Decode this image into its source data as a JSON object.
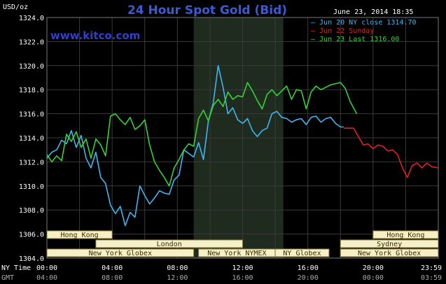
{
  "chart_data": {
    "type": "line",
    "title": "24 Hour Spot Gold (Bid)",
    "watermark": "www.kitco.com",
    "timestamp": "June 23, 2014 18:35",
    "y_unit_label": "USD/oz",
    "ylim": [
      1304.0,
      1324.0
    ],
    "y_ticks": [
      "1304.0",
      "1306.0",
      "1308.0",
      "1310.0",
      "1312.0",
      "1314.0",
      "1316.0",
      "1318.0",
      "1320.0",
      "1322.0",
      "1324.0"
    ],
    "x_row_labels": {
      "ny": "NY Time",
      "gmt": "GMT"
    },
    "x_ticks_ny": [
      "00:00",
      "04:00",
      "08:00",
      "12:00",
      "16:00",
      "20:00",
      "23:59"
    ],
    "x_ticks_gmt": [
      "04:00",
      "08:00",
      "12:00",
      "16:00",
      "20:00",
      "00:00",
      "03:59"
    ],
    "x_range_hours": [
      0,
      24
    ],
    "colors": {
      "background": "#000000",
      "grid": "#3a3a3a",
      "axis_text": "#ffffff",
      "title": "#3b5bd6",
      "watermark": "#2f3fd0",
      "market_label_bg": "#f5f0c8",
      "market_label_border": "#8a7a3a",
      "market_label_text": "#3a2a00",
      "highlight_band": "#1e2b1e"
    },
    "legend_position": "top-right",
    "highlight_band_hours": [
      9.0,
      14.5
    ],
    "series": [
      {
        "name": "Jun 20 NY close 1314.70",
        "color": "#3fb6f0",
        "x": [
          0,
          0.3,
          0.6,
          0.9,
          1.2,
          1.5,
          1.8,
          2.1,
          2.4,
          2.7,
          3.0,
          3.3,
          3.6,
          3.9,
          4.2,
          4.5,
          4.8,
          5.1,
          5.4,
          5.7,
          6.0,
          6.3,
          6.6,
          6.9,
          7.2,
          7.5,
          7.8,
          8.1,
          8.4,
          8.7,
          9.0,
          9.3,
          9.6,
          9.9,
          10.2,
          10.5,
          10.8,
          11.1,
          11.4,
          11.7,
          12.0,
          12.3,
          12.6,
          12.9,
          13.2,
          13.5,
          13.8,
          14.1,
          14.4,
          14.7,
          15.0,
          15.3,
          15.6,
          15.9,
          16.2,
          16.5,
          16.8,
          17.1,
          17.4,
          17.7,
          18.0,
          18.2
        ],
        "values": [
          1312.3,
          1312.8,
          1313.0,
          1313.8,
          1313.5,
          1314.6,
          1313.2,
          1314.2,
          1312.3,
          1311.5,
          1312.8,
          1310.7,
          1310.2,
          1308.4,
          1307.7,
          1308.3,
          1306.7,
          1307.8,
          1307.4,
          1310.0,
          1309.2,
          1308.5,
          1309.0,
          1309.6,
          1309.4,
          1309.3,
          1310.5,
          1310.9,
          1313.0,
          1312.7,
          1312.4,
          1313.6,
          1312.2,
          1315.4,
          1316.9,
          1320.0,
          1318.2,
          1316.0,
          1316.5,
          1315.5,
          1315.2,
          1315.6,
          1314.6,
          1314.1,
          1314.6,
          1314.8,
          1316.0,
          1316.2,
          1315.7,
          1315.6,
          1315.3,
          1315.5,
          1315.6,
          1315.1,
          1315.7,
          1315.8,
          1315.3,
          1315.6,
          1315.7,
          1315.2,
          1314.9,
          1314.9
        ]
      },
      {
        "name": "Jun 22 Sunday",
        "color": "#e02020",
        "x": [
          18.2,
          18.5,
          18.8,
          19.1,
          19.4,
          19.7,
          20.0,
          20.3,
          20.6,
          20.9,
          21.2,
          21.5,
          21.8,
          22.1,
          22.4,
          22.7,
          23.0,
          23.3,
          23.6,
          23.99
        ],
        "values": [
          1314.8,
          1314.8,
          1314.8,
          1314.1,
          1313.4,
          1313.5,
          1313.1,
          1313.4,
          1313.3,
          1312.9,
          1313.0,
          1312.6,
          1311.5,
          1310.7,
          1311.7,
          1311.9,
          1311.5,
          1311.9,
          1311.6,
          1311.5
        ]
      },
      {
        "name": "Jun 23 Last 1316.00",
        "color": "#35d335",
        "x": [
          0,
          0.3,
          0.6,
          0.9,
          1.2,
          1.5,
          1.8,
          2.1,
          2.4,
          2.7,
          3.0,
          3.3,
          3.6,
          3.9,
          4.2,
          4.5,
          4.8,
          5.1,
          5.4,
          5.7,
          6.0,
          6.3,
          6.6,
          6.9,
          7.2,
          7.5,
          7.8,
          8.1,
          8.4,
          8.7,
          9.0,
          9.3,
          9.6,
          9.9,
          10.2,
          10.5,
          10.8,
          11.1,
          11.4,
          11.7,
          12.0,
          12.3,
          12.6,
          12.9,
          13.2,
          13.5,
          13.8,
          14.1,
          14.4,
          14.7,
          15.0,
          15.3,
          15.6,
          15.9,
          16.2,
          16.5,
          16.8,
          17.1,
          17.4,
          17.7,
          18.0,
          18.3,
          18.6,
          19.0
        ],
        "values": [
          1312.6,
          1312.0,
          1312.5,
          1312.1,
          1314.3,
          1313.7,
          1314.5,
          1313.2,
          1313.9,
          1312.3,
          1313.9,
          1313.4,
          1312.5,
          1315.8,
          1316.0,
          1315.5,
          1315.1,
          1315.7,
          1314.7,
          1315.0,
          1315.5,
          1313.4,
          1312.0,
          1311.3,
          1310.7,
          1310.0,
          1311.5,
          1312.2,
          1313.0,
          1313.5,
          1313.3,
          1315.6,
          1316.3,
          1315.4,
          1316.7,
          1317.2,
          1316.6,
          1317.8,
          1317.2,
          1317.5,
          1317.4,
          1318.6,
          1317.9,
          1317.1,
          1316.4,
          1317.6,
          1318.0,
          1317.5,
          1317.9,
          1318.3,
          1317.2,
          1318.0,
          1317.9,
          1316.4,
          1317.8,
          1318.3,
          1318.0,
          1318.2,
          1318.4,
          1318.5,
          1318.6,
          1318.1,
          1317.0,
          1316.0
        ]
      }
    ],
    "market_hours": [
      {
        "label": "Hong Kong",
        "row": 0,
        "start": 0.0,
        "end": 4.0
      },
      {
        "label": "London",
        "row": 1,
        "start": 3.0,
        "end": 12.0
      },
      {
        "label": "New York Globex",
        "row": 2,
        "start": 0.0,
        "end": 9.0
      },
      {
        "label": "New York NYMEX",
        "row": 2,
        "start": 9.3,
        "end": 14.0
      },
      {
        "label": "NY Globex",
        "row": 2,
        "start": 14.0,
        "end": 17.3
      },
      {
        "label": "Hong Kong",
        "row": 0,
        "start": 20.0,
        "end": 24.0
      },
      {
        "label": "Sydney",
        "row": 1,
        "start": 18.0,
        "end": 24.0
      },
      {
        "label": "New York Globex",
        "row": 2,
        "start": 18.0,
        "end": 24.0
      }
    ]
  }
}
